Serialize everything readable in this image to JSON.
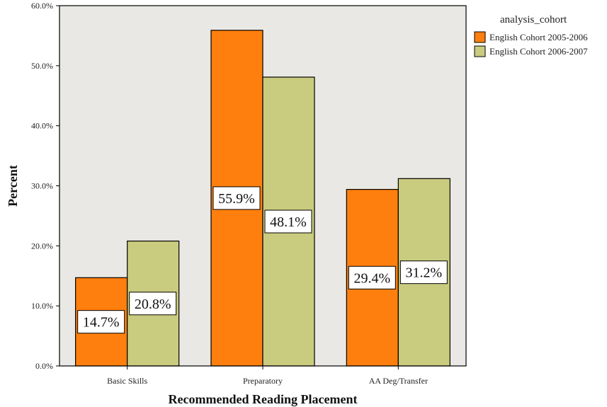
{
  "chart_data": {
    "type": "bar",
    "categories": [
      "Basic Skills",
      "Preparatory",
      "AA Deg/Transfer"
    ],
    "series": [
      {
        "name": "English Cohort 2005-2006",
        "values": [
          14.7,
          55.9,
          29.4
        ],
        "labels": [
          "14.7%",
          "55.9%",
          "29.4%"
        ],
        "color": "#ff7f0e"
      },
      {
        "name": "English Cohort 2006-2007",
        "values": [
          20.8,
          48.1,
          31.2
        ],
        "labels": [
          "20.8%",
          "48.1%",
          "31.2%"
        ],
        "color": "#c9cb7f"
      }
    ],
    "xlabel": "Recommended Reading Placement",
    "ylabel": "Percent",
    "ylim": [
      0,
      60
    ],
    "yticks": [
      "0.0%",
      "10.0%",
      "20.0%",
      "30.0%",
      "40.0%",
      "50.0%",
      "60.0%"
    ],
    "legend_title": "analysis_cohort",
    "legend_position": "top-right",
    "plot_background": "#eae8e4",
    "grid": false
  }
}
